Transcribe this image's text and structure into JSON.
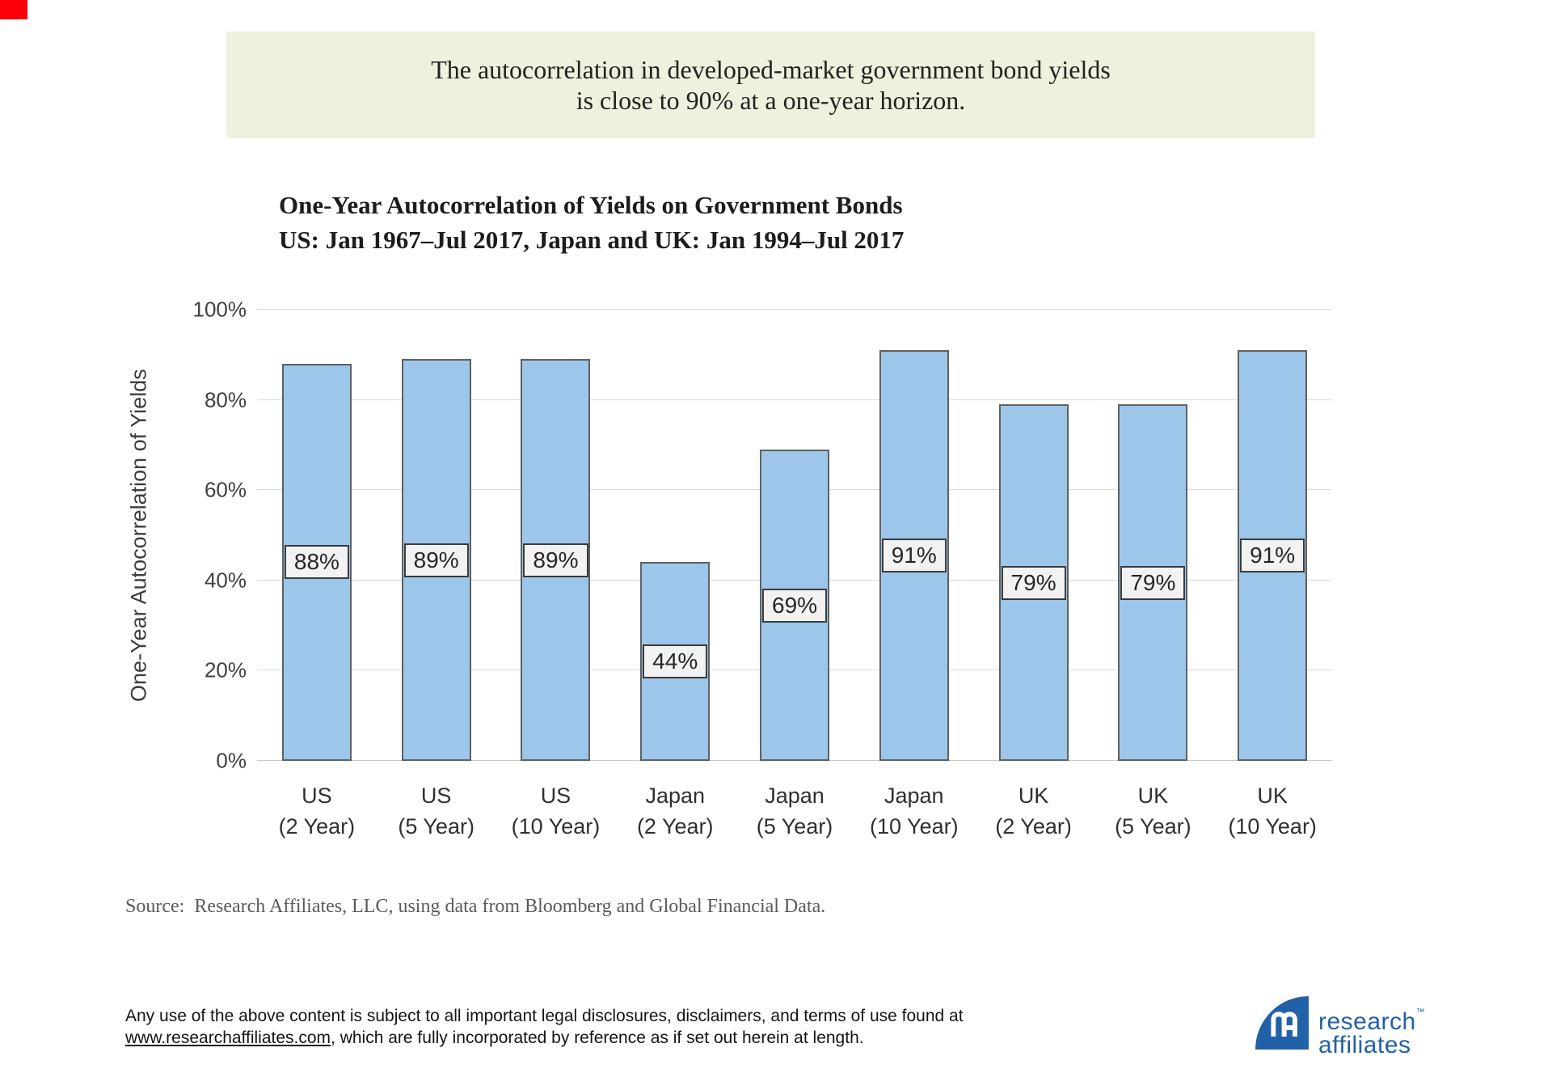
{
  "banner": {
    "line1": "The autocorrelation in developed-market government bond yields",
    "line2": "is close to 90% at a one-year horizon.",
    "bg_color": "#EDF1DE"
  },
  "chart": {
    "title_line1": "One-Year Autocorrelation of Yields on Government Bonds",
    "title_line2": "US: Jan 1967–Jul 2017, Japan and UK: Jan 1994–Jul 2017"
  },
  "chart_data": {
    "type": "bar",
    "title": "One-Year Autocorrelation of Yields on Government Bonds",
    "subtitle": "US: Jan 1967–Jul 2017, Japan and UK: Jan 1994–Jul 2017",
    "xlabel": "",
    "ylabel": "One-Year Autocorrelation of Yields",
    "ylim": [
      0,
      100
    ],
    "ytick_labels": [
      "0%",
      "20%",
      "40%",
      "60%",
      "80%",
      "100%"
    ],
    "grid": "horizontal",
    "legend": "none",
    "categories": [
      [
        "US",
        "(2 Year)"
      ],
      [
        "US",
        "(5 Year)"
      ],
      [
        "US",
        "(10 Year)"
      ],
      [
        "Japan",
        "(2 Year)"
      ],
      [
        "Japan",
        "(5 Year)"
      ],
      [
        "Japan",
        "(10 Year)"
      ],
      [
        "UK",
        "(2 Year)"
      ],
      [
        "UK",
        "(5 Year)"
      ],
      [
        "UK",
        "(10 Year)"
      ]
    ],
    "values": [
      88,
      89,
      89,
      44,
      69,
      91,
      79,
      79,
      91
    ],
    "bar_labels": [
      "88%",
      "89%",
      "89%",
      "44%",
      "69%",
      "91%",
      "79%",
      "79%",
      "91%"
    ],
    "bar_color": "#9CC7EA",
    "bar_border_color": "#5F6062",
    "label_box_bg": "#F2F2F2",
    "label_box_border": "#3B3B3B"
  },
  "source": {
    "text": "Source:  Research Affiliates, LLC, using data from Bloomberg and Global Financial Data."
  },
  "footer": {
    "line1": "Any use of the above content is subject to all important legal disclosures, disclaimers, and terms of use found at",
    "link": "www.researchaffiliates.com",
    "line2_rest": ", which are fully incorporated by reference as if set out herein at length."
  },
  "logo": {
    "line1": "research",
    "tm": "™",
    "line2": "affiliates",
    "color": "#2161A8"
  }
}
